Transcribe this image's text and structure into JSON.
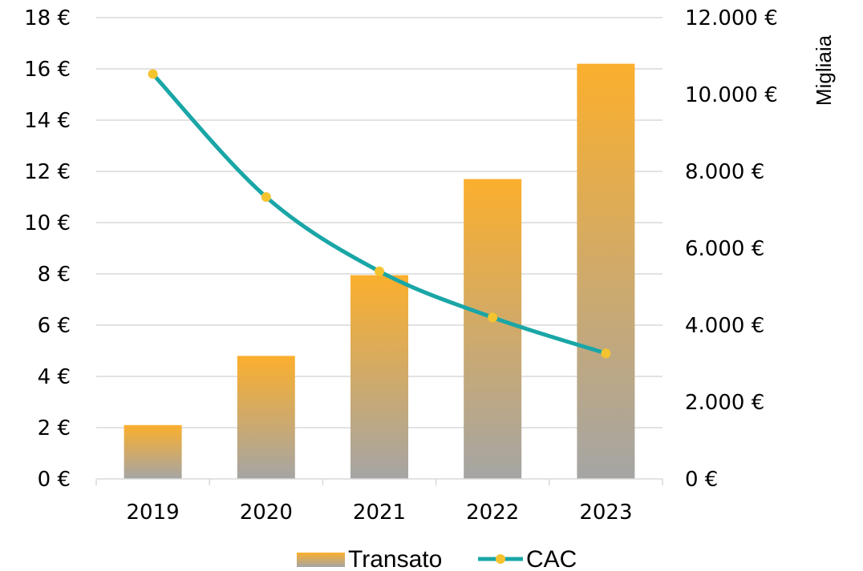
{
  "chart_data": {
    "type": "bar",
    "categories": [
      "2019",
      "2020",
      "2021",
      "2022",
      "2023"
    ],
    "series": [
      {
        "name": "Transato",
        "type": "bar",
        "axis": "right",
        "values": [
          1400,
          3200,
          5300,
          7800,
          10800
        ],
        "color_top": "#FBAF2D",
        "color_bottom": "#A5A5A5"
      },
      {
        "name": "CAC",
        "type": "line",
        "axis": "left",
        "values": [
          15.8,
          11.0,
          8.1,
          6.3,
          4.9
        ],
        "line_color": "#1AA6A6",
        "marker_color": "#F4C430"
      }
    ],
    "y_left": {
      "ylim": [
        0,
        18
      ],
      "ticks": [
        0,
        2,
        4,
        6,
        8,
        10,
        12,
        14,
        16,
        18
      ],
      "tick_labels": [
        "0 €",
        "2 €",
        "4 €",
        "6 €",
        "8 €",
        "10 €",
        "12 €",
        "14 €",
        "16 €",
        "18 €"
      ]
    },
    "y_right": {
      "ylim": [
        0,
        12000
      ],
      "ticks": [
        0,
        2000,
        4000,
        6000,
        8000,
        10000,
        12000
      ],
      "tick_labels": [
        "0 €",
        "2.000 €",
        "4.000 €",
        "6.000 €",
        "8.000 €",
        "10.000 €",
        "12.000 €"
      ],
      "label": "Migliaia"
    },
    "grid": true,
    "legend": "bottom"
  }
}
